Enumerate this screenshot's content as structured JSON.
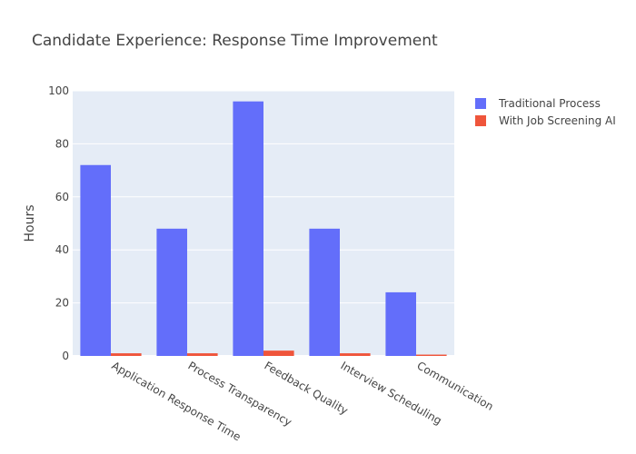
{
  "chart_data": {
    "type": "bar",
    "title": "Candidate Experience: Response Time Improvement",
    "xlabel": "",
    "ylabel": "Hours",
    "ylim": [
      0,
      100
    ],
    "yticks": [
      0,
      20,
      40,
      60,
      80,
      100
    ],
    "grid": true,
    "legend_position": "top-right",
    "categories": [
      "Application Response Time",
      "Process Transparency",
      "Feedback Quality",
      "Interview Scheduling",
      "Communication"
    ],
    "series": [
      {
        "name": "Traditional Process",
        "color": "#636efa",
        "values": [
          72,
          48,
          96,
          48,
          24
        ]
      },
      {
        "name": "With Job Screening AI",
        "color": "#ef553b",
        "values": [
          1,
          1,
          2,
          1,
          0.5
        ]
      }
    ]
  }
}
